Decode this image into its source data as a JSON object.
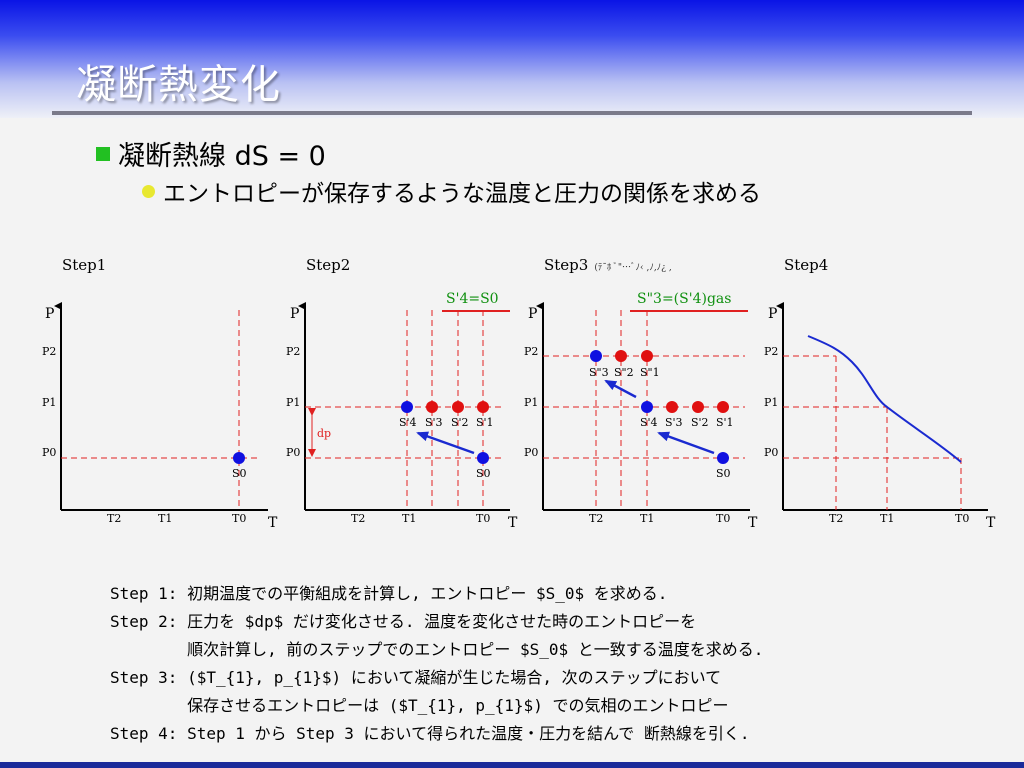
{
  "slide": {
    "title": "凝断熱変化",
    "bullet1": "凝断熱線 dS = 0",
    "bullet2": "エントロピーが保存するような温度と圧力の関係を求める"
  },
  "colors": {
    "header_top": "#0a14e6",
    "bullet_square": "#22c022",
    "bullet_dot": "#e8e830",
    "blue_point": "#1010e0",
    "red_point": "#e01010",
    "guide_red": "#e02020",
    "label_green": "#109010",
    "curve_blue": "#1a2ad0"
  },
  "steps": {
    "step1": "Step1",
    "step2": "Step2",
    "step3": "Step3",
    "step3_garbled": "(ﾃ¯ﾎ ﾞ\"…ﾞﾉ‹ ,ﾉ,ﾉ¿ ,",
    "step4": "Step4"
  },
  "axes": {
    "y_letter": "P",
    "x_letter": "T",
    "p_ticks": [
      "P2",
      "P1",
      "P0"
    ],
    "t_ticks": [
      "T2",
      "T1",
      "T0"
    ]
  },
  "labels": {
    "s0": "S0",
    "step2_points": [
      "S'4",
      "S'3",
      "S'2",
      "S'1"
    ],
    "step2_header": "S'4=S0",
    "dp": "dp",
    "step3_top_points": [
      "S\"3",
      "S\"2",
      "S\"1"
    ],
    "step3_mid_points": [
      "S'4",
      "S'3",
      "S'2",
      "S'1"
    ],
    "step3_header": "S\"3=(S'4)gas"
  },
  "descriptions": [
    "Step 1: 初期温度での平衡組成を計算し, エントロピー $S_0$ を求める.",
    "Step 2: 圧力を $dp$ だけ変化させる. 温度を変化させた時のエントロピーを",
    "        順次計算し, 前のステップでのエントロピー $S_0$ と一致する温度を求める.",
    "Step 3: ($T_{1}, p_{1}$) において凝縮が生じた場合, 次のステップにおいて",
    "        保存させるエントロピーは ($T_{1}, p_{1}$) での気相のエントロピー",
    "Step 4: Step 1 から Step 3 において得られた温度・圧力を結んで 断熱線を引く."
  ]
}
